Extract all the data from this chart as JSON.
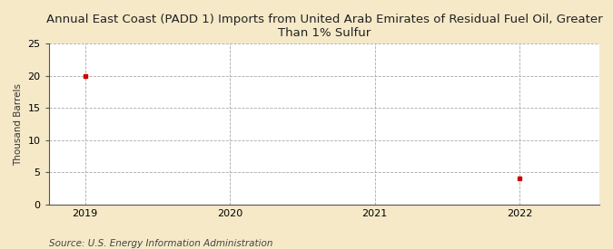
{
  "title": "Annual East Coast (PADD 1) Imports from United Arab Emirates of Residual Fuel Oil, Greater\nThan 1% Sulfur",
  "ylabel": "Thousand Barrels",
  "source": "Source: U.S. Energy Information Administration",
  "x_values": [
    2019,
    2022
  ],
  "y_values": [
    20,
    4
  ],
  "marker_color": "#cc0000",
  "marker": "s",
  "marker_size": 3.5,
  "xlim": [
    2018.75,
    2022.55
  ],
  "ylim": [
    0,
    25
  ],
  "yticks": [
    0,
    5,
    10,
    15,
    20,
    25
  ],
  "xticks": [
    2019,
    2020,
    2021,
    2022
  ],
  "fig_bg_color": "#f5e9c8",
  "plot_bg_color": "#ffffff",
  "grid_color": "#aaaaaa",
  "grid_style": "--",
  "title_fontsize": 9.5,
  "label_fontsize": 7.5,
  "tick_fontsize": 8,
  "source_fontsize": 7.5
}
